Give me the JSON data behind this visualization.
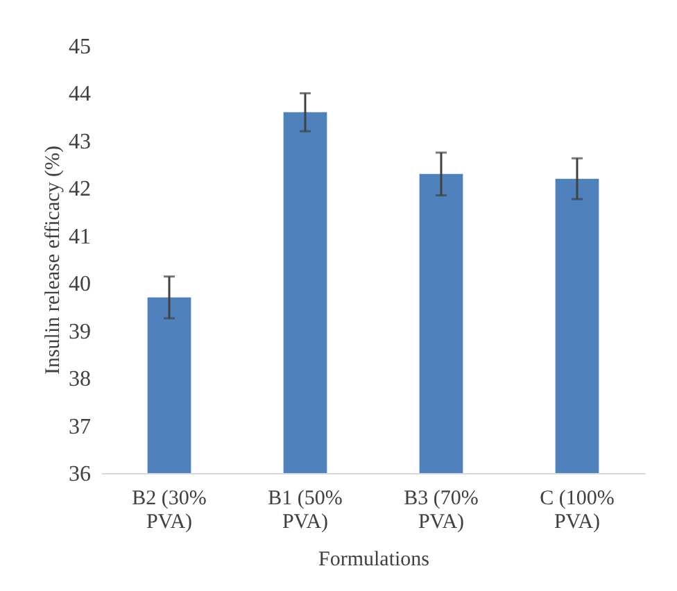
{
  "chart_data": {
    "type": "bar",
    "xlabel": "Formulations",
    "ylabel": "Insulin release efficacy (%)",
    "categories": [
      "B2 (30% PVA)",
      "B1 (50% PVA)",
      "B3 (70% PVA)",
      "C (100% PVA)"
    ],
    "values": [
      39.7,
      43.6,
      42.3,
      42.2
    ],
    "errors": [
      0.44,
      0.4,
      0.45,
      0.43
    ],
    "color": "#4f81bd",
    "ylim": [
      36,
      45
    ],
    "yticks": [
      36,
      37,
      38,
      39,
      40,
      41,
      42,
      43,
      44,
      45
    ],
    "grid": false
  }
}
